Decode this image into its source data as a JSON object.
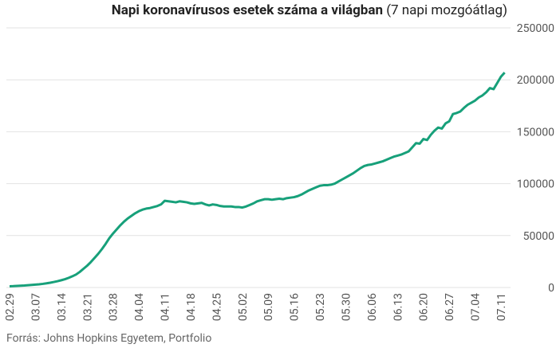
{
  "chart_data": {
    "type": "line",
    "title": "Napi koronavírusos esetek száma a világban",
    "subtitle": "(7 napi mozgóátlag)",
    "source": "Forrás: Johns Hopkins Egyetem, Portfolio",
    "color": "#17a07a",
    "grid": true,
    "ylim": [
      0,
      250000
    ],
    "yticks": [
      0,
      50000,
      100000,
      150000,
      200000,
      250000
    ],
    "categories": [
      "02.29",
      null,
      null,
      null,
      null,
      null,
      null,
      "03.07",
      null,
      null,
      null,
      null,
      null,
      null,
      "03.14",
      null,
      null,
      null,
      null,
      null,
      null,
      "03.21",
      null,
      null,
      null,
      null,
      null,
      null,
      "03.28",
      null,
      null,
      null,
      null,
      null,
      null,
      "04.04",
      null,
      null,
      null,
      null,
      null,
      null,
      "04.11",
      null,
      null,
      null,
      null,
      null,
      null,
      "04.18",
      null,
      null,
      null,
      null,
      null,
      null,
      "04.25",
      null,
      null,
      null,
      null,
      null,
      null,
      "05.02",
      null,
      null,
      null,
      null,
      null,
      null,
      "05.09",
      null,
      null,
      null,
      null,
      null,
      null,
      "05.16",
      null,
      null,
      null,
      null,
      null,
      null,
      "05.23",
      null,
      null,
      null,
      null,
      null,
      null,
      "05.30",
      null,
      null,
      null,
      null,
      null,
      null,
      "06.06",
      null,
      null,
      null,
      null,
      null,
      null,
      "06.13",
      null,
      null,
      null,
      null,
      null,
      null,
      "06.20",
      null,
      null,
      null,
      null,
      null,
      null,
      "06.27",
      null,
      null,
      null,
      null,
      null,
      null,
      "07.04",
      null,
      null,
      null,
      null,
      null,
      null,
      "07.11",
      null
    ],
    "values": [
      1200,
      1300,
      1500,
      1700,
      1900,
      2200,
      2500,
      2800,
      3100,
      3500,
      4000,
      4600,
      5300,
      6100,
      7000,
      8000,
      9300,
      10800,
      12500,
      15000,
      18000,
      21000,
      24500,
      28500,
      32500,
      37000,
      42000,
      47500,
      52000,
      56000,
      60000,
      63500,
      66500,
      69000,
      71500,
      73500,
      75000,
      76000,
      76500,
      77500,
      78500,
      80000,
      83500,
      83000,
      82500,
      82000,
      83000,
      82500,
      82000,
      81000,
      80500,
      81000,
      81500,
      80000,
      79000,
      80000,
      79500,
      78500,
      78000,
      78000,
      78000,
      77500,
      77500,
      77000,
      78000,
      79500,
      81000,
      83000,
      84000,
      85000,
      85000,
      84500,
      85000,
      85500,
      85000,
      86000,
      86500,
      87000,
      88000,
      89500,
      91500,
      93500,
      95000,
      96500,
      98000,
      98500,
      98500,
      99000,
      100000,
      102000,
      104000,
      106000,
      108000,
      110000,
      112500,
      115000,
      117000,
      118000,
      118500,
      119500,
      120500,
      121500,
      123000,
      124500,
      126000,
      127000,
      128000,
      129500,
      131000,
      135000,
      139000,
      138500,
      143000,
      142000,
      147000,
      151000,
      154000,
      153000,
      158000,
      160000,
      167000,
      168000,
      169500,
      173000,
      176000,
      178000,
      180000,
      183000,
      185000,
      188000,
      192000,
      191000,
      197000,
      203000,
      207000
    ]
  }
}
